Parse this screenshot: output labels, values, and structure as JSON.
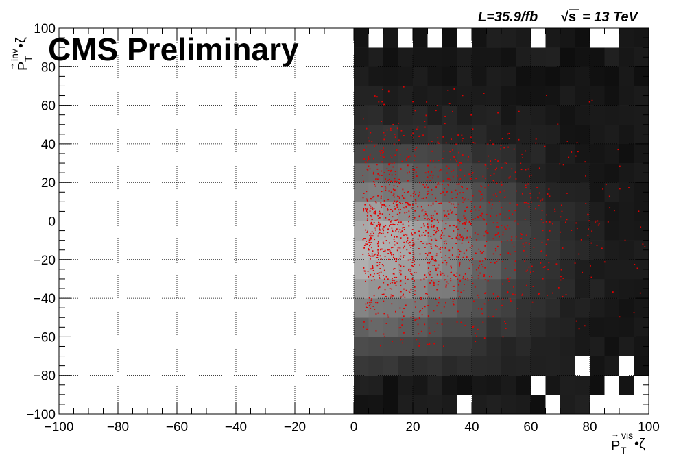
{
  "header": {
    "experiment_label": "CMS Preliminary",
    "luminosity_label": "L=35.9/fb",
    "energy_label": "= 13 TeV",
    "sqrt_s_symbol": "√s"
  },
  "chart_data": {
    "type": "heatmap",
    "title": "",
    "xlabel": {
      "vector": "P",
      "superscript": "vis",
      "subscript": "T",
      "suffix": "•ζ"
    },
    "ylabel": {
      "vector": "P",
      "superscript": "inv",
      "subscript": "T",
      "suffix": "•ζ"
    },
    "xlim": [
      -100,
      100
    ],
    "ylim": [
      -100,
      100
    ],
    "x_ticks": [
      -100,
      -80,
      -60,
      -40,
      -20,
      0,
      20,
      40,
      60,
      80,
      100
    ],
    "y_ticks": [
      -100,
      -80,
      -60,
      -40,
      -20,
      0,
      20,
      40,
      60,
      80,
      100
    ],
    "x_tick_labels": [
      "−100",
      "−80",
      "−60",
      "−40",
      "−20",
      "0",
      "20",
      "40",
      "60",
      "80",
      "100"
    ],
    "y_tick_labels": [
      "−100",
      "−80",
      "−60",
      "−40",
      "−20",
      "0",
      "20",
      "40",
      "60",
      "80",
      "100"
    ],
    "grid": true,
    "heatmap": {
      "description_of_scale": "grayscale background histogram; lighter = higher density",
      "x_bin_edges_start": 0,
      "x_bin_width": 5,
      "y_bin_edges_start": -100,
      "y_bin_width": 10,
      "occupied_x_range": [
        0,
        100
      ],
      "peak_location": [
        5,
        -15
      ],
      "peak_gray_level": 0.62,
      "empty_bins": [
        [
          35,
          -100
        ],
        [
          65,
          -100
        ],
        [
          80,
          -100
        ],
        [
          85,
          -100
        ],
        [
          90,
          -100
        ],
        [
          95,
          -100
        ],
        [
          40,
          -95
        ],
        [
          75,
          -95
        ],
        [
          80,
          -95
        ],
        [
          60,
          -90
        ],
        [
          85,
          -90
        ],
        [
          95,
          -90
        ],
        [
          70,
          -85
        ],
        [
          80,
          -85
        ],
        [
          85,
          -85
        ],
        [
          75,
          -80
        ],
        [
          90,
          -80
        ],
        [
          5,
          90
        ],
        [
          15,
          90
        ],
        [
          25,
          90
        ],
        [
          35,
          90
        ],
        [
          60,
          90
        ],
        [
          80,
          90
        ],
        [
          85,
          90
        ],
        [
          0,
          95
        ],
        [
          5,
          95
        ],
        [
          10,
          95
        ],
        [
          15,
          95
        ],
        [
          35,
          95
        ],
        [
          40,
          95
        ],
        [
          70,
          95
        ],
        [
          75,
          95
        ],
        [
          80,
          95
        ],
        [
          90,
          95
        ],
        [
          95,
          95
        ]
      ]
    },
    "series": [
      {
        "type": "scatter",
        "color": "#e00000",
        "point_count": 1500,
        "x_range": [
          0,
          100
        ],
        "y_range": [
          -65,
          70
        ],
        "center": [
          15,
          -5
        ]
      }
    ],
    "colors": {
      "scatter_points": "#e00000",
      "frame": "#000000",
      "grid": "#000000",
      "empty_bin": "#ffffff"
    }
  }
}
